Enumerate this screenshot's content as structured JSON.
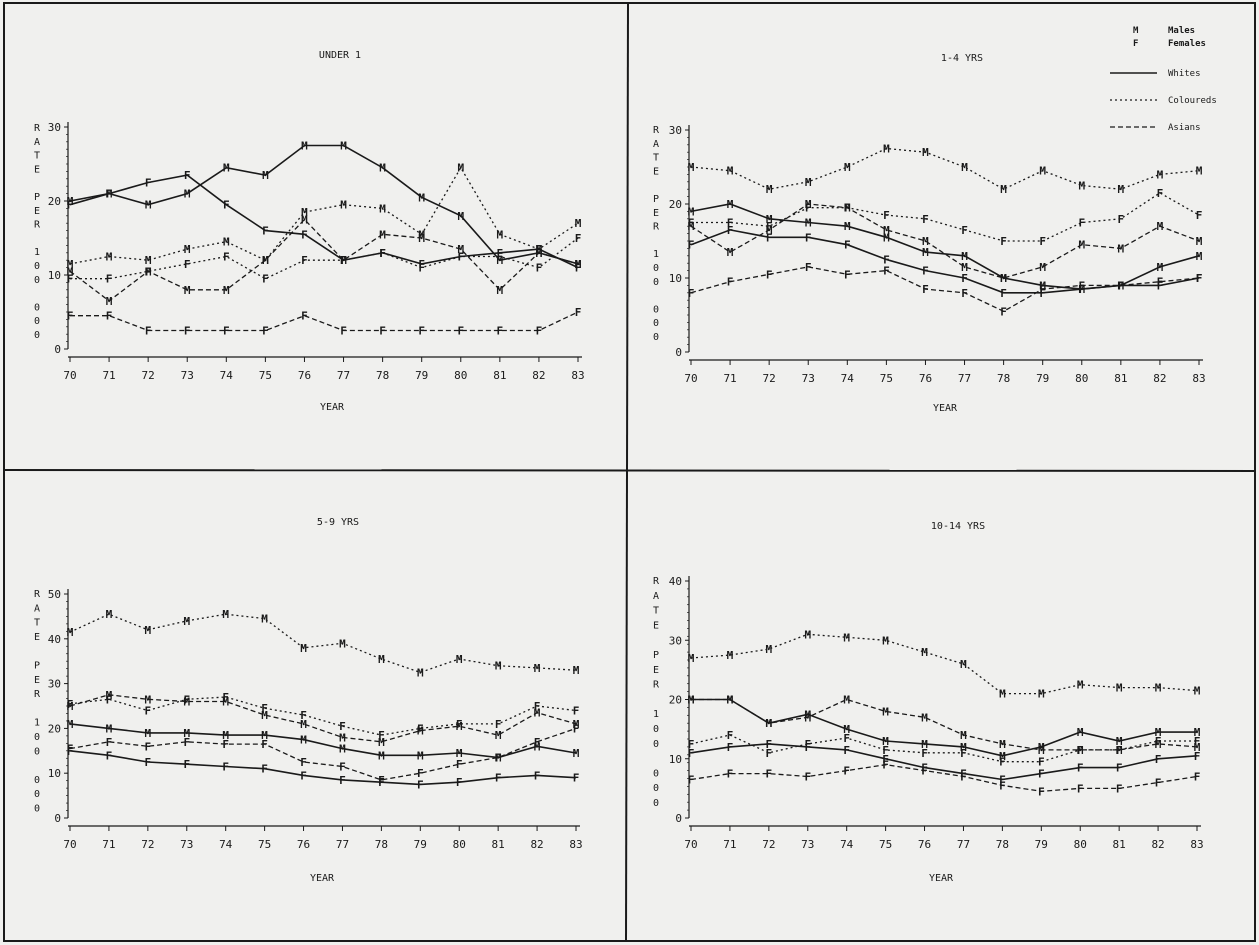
{
  "chart_data": [
    {
      "type": "line",
      "title": "UNDER 1",
      "ylabel_letters": [
        "R",
        "A",
        "T",
        "E",
        "",
        "P",
        "E",
        "R",
        "",
        "1",
        "0",
        "0",
        "",
        "0",
        "0",
        "0"
      ],
      "xlabel": "YEAR",
      "x": [
        "70",
        "71",
        "72",
        "73",
        "74",
        "75",
        "76",
        "77",
        "78",
        "79",
        "80",
        "81",
        "82",
        "83"
      ],
      "yticks": [
        0,
        10,
        20,
        30
      ],
      "ylim": [
        0,
        30
      ],
      "series": [
        {
          "group": "Whites",
          "sex": "M",
          "values": [
            20,
            21,
            19.5,
            21,
            24.5,
            23.5,
            27.5,
            27.5,
            24.5,
            20.5,
            18,
            12,
            13,
            11.5
          ]
        },
        {
          "group": "Whites",
          "sex": "F",
          "values": [
            19.5,
            21,
            22.5,
            23.5,
            19.5,
            16,
            15.5,
            12,
            13,
            11.5,
            12.5,
            13,
            13.5,
            11
          ]
        },
        {
          "group": "Coloureds",
          "sex": "M",
          "values": [
            11.5,
            12.5,
            12,
            13.5,
            14.5,
            12,
            18.5,
            19.5,
            19,
            15.5,
            24.5,
            15.5,
            13.5,
            17
          ]
        },
        {
          "group": "Coloureds",
          "sex": "F",
          "values": [
            9.5,
            9.5,
            10.5,
            11.5,
            12.5,
            9.5,
            12,
            12,
            13,
            11,
            12.5,
            12.5,
            11,
            15
          ]
        },
        {
          "group": "Asians",
          "sex": "M",
          "values": [
            10.5,
            6.5,
            10.5,
            8,
            8,
            12,
            17.5,
            12,
            15.5,
            15,
            13.5,
            8,
            13,
            11.5
          ]
        },
        {
          "group": "Asians",
          "sex": "F",
          "values": [
            4.5,
            4.5,
            2.5,
            2.5,
            2.5,
            2.5,
            4.5,
            2.5,
            2.5,
            2.5,
            2.5,
            2.5,
            2.5,
            5
          ]
        }
      ]
    },
    {
      "type": "line",
      "title": "1-4 YRS",
      "ylabel_letters": [
        "R",
        "A",
        "T",
        "E",
        "",
        "P",
        "E",
        "R",
        "",
        "1",
        "0",
        "0",
        "",
        "0",
        "0",
        "0"
      ],
      "xlabel": "YEAR",
      "x": [
        "70",
        "71",
        "72",
        "73",
        "74",
        "75",
        "76",
        "77",
        "78",
        "79",
        "80",
        "81",
        "82",
        "83"
      ],
      "yticks": [
        0,
        10,
        20,
        30
      ],
      "ylim": [
        0,
        30
      ],
      "series": [
        {
          "group": "Whites",
          "sex": "M",
          "values": [
            19,
            20,
            18,
            17.5,
            17,
            15.5,
            13.5,
            13,
            10,
            9,
            8.5,
            9,
            11.5,
            13
          ]
        },
        {
          "group": "Whites",
          "sex": "F",
          "values": [
            14.5,
            16.5,
            15.5,
            15.5,
            14.5,
            12.5,
            11,
            10,
            8,
            8,
            8.5,
            9,
            9,
            10
          ]
        },
        {
          "group": "Coloureds",
          "sex": "M",
          "values": [
            25,
            24.5,
            22,
            23,
            25,
            27.5,
            27,
            25,
            22,
            24.5,
            22.5,
            22,
            24,
            24.5
          ]
        },
        {
          "group": "Coloureds",
          "sex": "F",
          "values": [
            17.5,
            17.5,
            17,
            19.5,
            19.5,
            18.5,
            18,
            16.5,
            15,
            15,
            17.5,
            18,
            21.5,
            18.5
          ]
        },
        {
          "group": "Asians",
          "sex": "M",
          "values": [
            17,
            13.5,
            16.5,
            20,
            19.5,
            16.5,
            15,
            11.5,
            10,
            11.5,
            14.5,
            14,
            17,
            15
          ]
        },
        {
          "group": "Asians",
          "sex": "F",
          "values": [
            8,
            9.5,
            10.5,
            11.5,
            10.5,
            11,
            8.5,
            8,
            5.5,
            8.5,
            9,
            9,
            9.5,
            10
          ]
        }
      ]
    },
    {
      "type": "line",
      "title": "5-9 YRS",
      "ylabel_letters": [
        "R",
        "A",
        "T",
        "E",
        "",
        "P",
        "E",
        "R",
        "",
        "1",
        "0",
        "0",
        "",
        "0",
        "0",
        "0"
      ],
      "xlabel": "YEAR",
      "x": [
        "70",
        "71",
        "72",
        "73",
        "74",
        "75",
        "76",
        "77",
        "78",
        "79",
        "80",
        "81",
        "82",
        "83"
      ],
      "yticks": [
        0,
        10,
        20,
        30,
        40,
        50
      ],
      "ylim": [
        0,
        50
      ],
      "series": [
        {
          "group": "Whites",
          "sex": "M",
          "values": [
            21,
            20,
            19,
            19,
            18.5,
            18.5,
            17.5,
            15.5,
            14,
            14,
            14.5,
            13.5,
            16,
            14.5
          ]
        },
        {
          "group": "Whites",
          "sex": "F",
          "values": [
            15,
            14,
            12.5,
            12,
            11.5,
            11,
            9.5,
            8.5,
            8,
            7.5,
            8,
            9,
            9.5,
            9
          ]
        },
        {
          "group": "Coloureds",
          "sex": "M",
          "values": [
            41.5,
            45.5,
            42,
            44,
            45.5,
            44.5,
            38,
            39,
            35.5,
            32.5,
            35.5,
            34,
            33.5,
            33
          ]
        },
        {
          "group": "Coloureds",
          "sex": "F",
          "values": [
            25.5,
            26.5,
            24,
            26.5,
            27,
            24.5,
            23,
            20.5,
            18.5,
            20,
            21,
            21,
            25,
            24
          ]
        },
        {
          "group": "Asians",
          "sex": "M",
          "values": [
            25,
            27.5,
            26.5,
            26,
            26,
            23,
            21,
            18,
            17,
            19.5,
            20.5,
            18.5,
            23.5,
            21
          ]
        },
        {
          "group": "Asians",
          "sex": "F",
          "values": [
            15.5,
            17,
            16,
            17,
            16.5,
            16.5,
            12.5,
            11.5,
            8.5,
            10,
            12,
            13.5,
            17,
            20
          ]
        }
      ]
    },
    {
      "type": "line",
      "title": "10-14 YRS",
      "ylabel_letters": [
        "R",
        "A",
        "T",
        "E",
        "",
        "P",
        "E",
        "R",
        "",
        "1",
        "0",
        "0",
        "",
        "0",
        "0",
        "0"
      ],
      "xlabel": "YEAR",
      "x": [
        "70",
        "71",
        "72",
        "73",
        "74",
        "75",
        "76",
        "77",
        "78",
        "79",
        "80",
        "81",
        "82",
        "83"
      ],
      "yticks": [
        0,
        10,
        20,
        30,
        40
      ],
      "ylim": [
        0,
        40
      ],
      "series": [
        {
          "group": "Whites",
          "sex": "M",
          "values": [
            20,
            20,
            16,
            17.5,
            15,
            13,
            12.5,
            12,
            10.5,
            12,
            14.5,
            13,
            14.5,
            14.5
          ]
        },
        {
          "group": "Whites",
          "sex": "F",
          "values": [
            11,
            12,
            12.5,
            12,
            11.5,
            10,
            8.5,
            7.5,
            6.5,
            7.5,
            8.5,
            8.5,
            10,
            10.5
          ]
        },
        {
          "group": "Coloureds",
          "sex": "M",
          "values": [
            27,
            27.5,
            28.5,
            31,
            30.5,
            30,
            28,
            26,
            21,
            21,
            22.5,
            22,
            22,
            21.5
          ]
        },
        {
          "group": "Coloureds",
          "sex": "F",
          "values": [
            12.5,
            14,
            11,
            12.5,
            13.5,
            11.5,
            11,
            11,
            9.5,
            9.5,
            11.5,
            11.5,
            13,
            13
          ]
        },
        {
          "group": "Asians",
          "sex": "M",
          "values": [
            20,
            20,
            16,
            17,
            20,
            18,
            17,
            14,
            12.5,
            11.5,
            11.5,
            11.5,
            12.5,
            12
          ]
        },
        {
          "group": "Asians",
          "sex": "F",
          "values": [
            6.5,
            7.5,
            7.5,
            7,
            8,
            9,
            8,
            7,
            5.5,
            4.5,
            5,
            5,
            6,
            7
          ]
        }
      ]
    }
  ],
  "legend": {
    "entries": [
      {
        "symbol": "M",
        "label": "Males"
      },
      {
        "symbol": "F",
        "label": "Females"
      },
      {
        "line": "solid",
        "label": "Whites"
      },
      {
        "line": "dotted",
        "label": "Coloureds"
      },
      {
        "line": "dashed",
        "label": "Asians"
      }
    ],
    "placement": "top-right of 1-4 YRS panel"
  },
  "colors": {
    "ink": "#1a1a1a",
    "background": "#f0f0ee"
  }
}
